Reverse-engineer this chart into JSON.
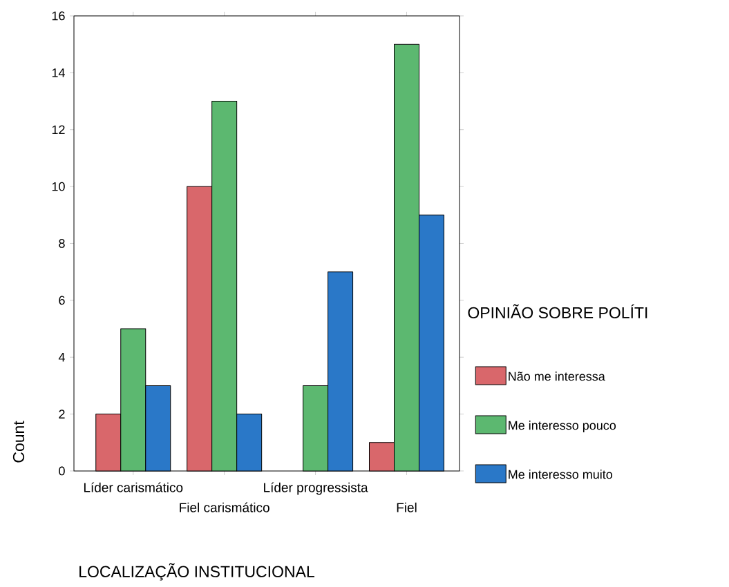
{
  "chart_data": {
    "type": "bar",
    "xlabel": "LOCALIZAÇÃO INSTITUCIONAL",
    "ylabel": "Count",
    "legend_title": "OPINIÃO SOBRE POLÍTI",
    "categories": [
      "Líder carismático",
      "Fiel carismático",
      "Líder progressista",
      "Fiel"
    ],
    "series": [
      {
        "name": "Não me interessa",
        "color": "#d9676b",
        "values": [
          2,
          10,
          null,
          1
        ]
      },
      {
        "name": "Me interesso pouco",
        "color": "#5cb870",
        "values": [
          5,
          13,
          3,
          15
        ]
      },
      {
        "name": "Me interesso muito",
        "color": "#2a78c8",
        "values": [
          3,
          2,
          7,
          9
        ]
      }
    ],
    "ylim": [
      0,
      16
    ],
    "yticks": [
      0,
      2,
      4,
      6,
      8,
      10,
      12,
      14,
      16
    ],
    "grid": false,
    "legend": "right"
  }
}
